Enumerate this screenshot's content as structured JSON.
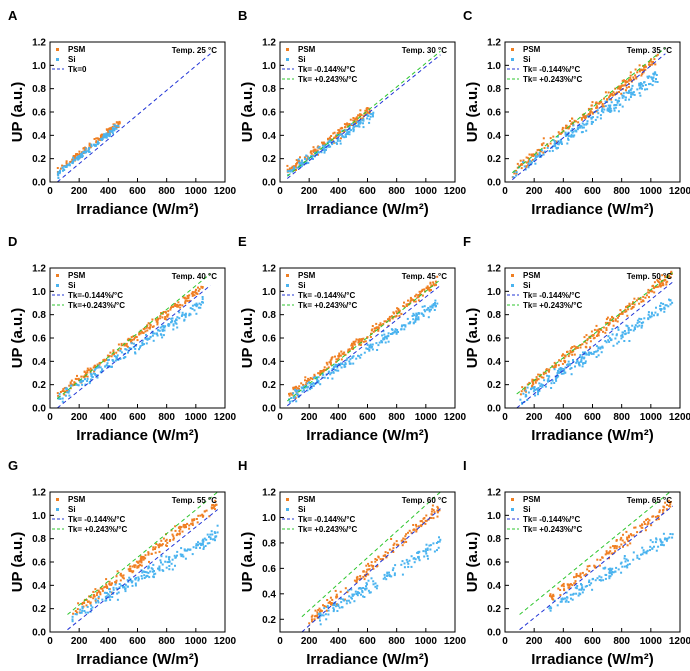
{
  "figure_title": "",
  "colors": {
    "psm": "#f07f22",
    "si": "#4ab3ef",
    "tk_neg": "#2134d6",
    "tk_pos": "#2dc62d",
    "tk_zero": "#2134d6"
  },
  "chart_data": [
    {
      "panel": "A",
      "type": "scatter",
      "temp": "Temp. 25 °C",
      "xlabel": "Irradiance (W/m²)",
      "ylabel": "UP (a.u.)",
      "xlim": [
        0,
        1200
      ],
      "ylim": [
        0,
        1.2
      ],
      "xticks": [
        "0",
        "200",
        "400",
        "600",
        "800",
        "1000",
        "1200"
      ],
      "yticks": [
        "0.0",
        "0.2",
        "0.4",
        "0.6",
        "0.8",
        "1.0",
        "1.2"
      ],
      "legend": [
        "PSM",
        "Si",
        "Tk=0"
      ],
      "series": [
        {
          "name": "PSM",
          "xrange": [
            50,
            480
          ],
          "slope": 0.001,
          "intercept": 0.035,
          "spread": 0.015,
          "n": 120
        },
        {
          "name": "Si",
          "xrange": [
            50,
            470
          ],
          "slope": 0.00098,
          "intercept": 0.02,
          "spread": 0.012,
          "n": 120
        }
      ],
      "lines": [
        {
          "name": "Tk=0",
          "color": "tk_zero",
          "x": [
            50,
            1100
          ],
          "y": [
            0.0,
            1.1
          ]
        }
      ]
    },
    {
      "panel": "B",
      "type": "scatter",
      "temp": "Temp. 30 °C",
      "xlabel": "Irradiance (W/m²)",
      "ylabel": "UP (a.u.)",
      "xlim": [
        0,
        1200
      ],
      "ylim": [
        0,
        1.2
      ],
      "xticks": [
        "0",
        "200",
        "400",
        "600",
        "800",
        "1000",
        "1200"
      ],
      "yticks": [
        "0.0",
        "0.2",
        "0.4",
        "0.6",
        "0.8",
        "1.0",
        "1.2"
      ],
      "legend": [
        "PSM",
        "Si",
        "Tk= -0.144%/°C",
        "Tk= +0.243%/°C"
      ],
      "series": [
        {
          "name": "PSM",
          "xrange": [
            50,
            630
          ],
          "slope": 0.00095,
          "intercept": 0.035,
          "spread": 0.02,
          "n": 160
        },
        {
          "name": "Si",
          "xrange": [
            50,
            640
          ],
          "slope": 0.00088,
          "intercept": 0.02,
          "spread": 0.02,
          "n": 160
        }
      ],
      "lines": [
        {
          "name": "Tk= -0.144%/°C",
          "color": "tk_neg",
          "x": [
            50,
            1100
          ],
          "y": [
            0.03,
            1.09
          ]
        },
        {
          "name": "Tk= +0.243%/°C",
          "color": "tk_pos",
          "x": [
            50,
            1100
          ],
          "y": [
            0.05,
            1.12
          ]
        }
      ]
    },
    {
      "panel": "C",
      "type": "scatter",
      "temp": "Temp. 35 °C",
      "xlabel": "Irradiance (W/m²)",
      "ylabel": "UP (a.u.)",
      "xlim": [
        0,
        1200
      ],
      "ylim": [
        0,
        1.2
      ],
      "xticks": [
        "0",
        "200",
        "400",
        "600",
        "800",
        "1000",
        "1200"
      ],
      "yticks": [
        "0.0",
        "0.2",
        "0.4",
        "0.6",
        "0.8",
        "1.0",
        "1.2"
      ],
      "legend": [
        "PSM",
        "Si",
        "Tk= -0.144%/°C",
        "Tk= +0.243%/°C"
      ],
      "series": [
        {
          "name": "PSM",
          "xrange": [
            50,
            1050
          ],
          "slope": 0.00098,
          "intercept": 0.035,
          "spread": 0.025,
          "n": 220
        },
        {
          "name": "Si",
          "xrange": [
            50,
            1050
          ],
          "slope": 0.00086,
          "intercept": 0.02,
          "spread": 0.03,
          "n": 220
        }
      ],
      "lines": [
        {
          "name": "Tk= -0.144%/°C",
          "color": "tk_neg",
          "x": [
            50,
            1100
          ],
          "y": [
            0.02,
            1.1
          ]
        },
        {
          "name": "Tk= +0.243%/°C",
          "color": "tk_pos",
          "x": [
            50,
            1100
          ],
          "y": [
            0.08,
            1.15
          ]
        }
      ]
    },
    {
      "panel": "D",
      "type": "scatter",
      "temp": "Temp. 40 °C",
      "xlabel": "Irradiance (W/m²)",
      "ylabel": "UP (a.u.)",
      "xlim": [
        0,
        1200
      ],
      "ylim": [
        0,
        1.2
      ],
      "xticks": [
        "0",
        "200",
        "400",
        "600",
        "800",
        "1000",
        "1200"
      ],
      "yticks": [
        "0.0",
        "0.2",
        "0.4",
        "0.6",
        "0.8",
        "1.0",
        "1.2"
      ],
      "legend": [
        "PSM",
        "Si",
        "Tk=-0.144%/°C",
        "Tk=+0.243%/°C"
      ],
      "series": [
        {
          "name": "PSM",
          "xrange": [
            50,
            1050
          ],
          "slope": 0.00093,
          "intercept": 0.06,
          "spread": 0.02,
          "n": 200
        },
        {
          "name": "Si",
          "xrange": [
            50,
            1050
          ],
          "slope": 0.00082,
          "intercept": 0.04,
          "spread": 0.025,
          "n": 200
        }
      ],
      "lines": [
        {
          "name": "Tk=-0.144%/°C",
          "color": "tk_neg",
          "x": [
            50,
            1100
          ],
          "y": [
            0.0,
            1.05
          ]
        },
        {
          "name": "Tk=+0.243%/°C",
          "color": "tk_pos",
          "x": [
            50,
            1100
          ],
          "y": [
            0.08,
            1.15
          ]
        }
      ]
    },
    {
      "panel": "E",
      "type": "scatter",
      "temp": "Temp. 45 °C",
      "xlabel": "Irradiance (W/m²)",
      "ylabel": "UP (a.u.)",
      "xlim": [
        0,
        1200
      ],
      "ylim": [
        0,
        1.2
      ],
      "xticks": [
        "0",
        "200",
        "400",
        "600",
        "800",
        "1000",
        "1200"
      ],
      "yticks": [
        "0.0",
        "0.2",
        "0.4",
        "0.6",
        "0.8",
        "1.0",
        "1.2"
      ],
      "legend": [
        "PSM",
        "Si",
        "Tk= -0.144%/°C",
        "Tk= +0.243%/°C"
      ],
      "series": [
        {
          "name": "PSM",
          "xrange": [
            60,
            1080
          ],
          "slope": 0.00096,
          "intercept": 0.05,
          "spread": 0.02,
          "n": 220
        },
        {
          "name": "Si",
          "xrange": [
            60,
            1080
          ],
          "slope": 0.00079,
          "intercept": 0.03,
          "spread": 0.025,
          "n": 220
        }
      ],
      "lines": [
        {
          "name": "Tk= -0.144%/°C",
          "color": "tk_neg",
          "x": [
            50,
            1100
          ],
          "y": [
            0.02,
            1.05
          ]
        },
        {
          "name": "Tk= +0.243%/°C",
          "color": "tk_pos",
          "x": [
            50,
            1100
          ],
          "y": [
            0.06,
            1.1
          ]
        }
      ]
    },
    {
      "panel": "F",
      "type": "scatter",
      "temp": "Temp. 50 °C",
      "xlabel": "Irradiance (W/m²)",
      "ylabel": "UP (a.u.)",
      "xlim": [
        0,
        1200
      ],
      "ylim": [
        0,
        1.2
      ],
      "xticks": [
        "0",
        "200",
        "400",
        "600",
        "800",
        "1000",
        "1200"
      ],
      "yticks": [
        "0.0",
        "0.2",
        "0.4",
        "0.6",
        "0.8",
        "1.0",
        "1.2"
      ],
      "legend": [
        "PSM",
        "Si",
        "Tk= -0.144%/°C",
        "Tk= +0.243%/°C"
      ],
      "series": [
        {
          "name": "PSM",
          "xrange": [
            100,
            1150
          ],
          "slope": 0.00097,
          "intercept": 0.03,
          "spread": 0.025,
          "n": 230
        },
        {
          "name": "Si",
          "xrange": [
            100,
            1150
          ],
          "slope": 0.00079,
          "intercept": 0.0,
          "spread": 0.03,
          "n": 230
        }
      ],
      "lines": [
        {
          "name": "Tk= -0.144%/°C",
          "color": "tk_neg",
          "x": [
            80,
            1150
          ],
          "y": [
            0.0,
            1.08
          ]
        },
        {
          "name": "Tk= +0.243%/°C",
          "color": "tk_pos",
          "x": [
            80,
            1150
          ],
          "y": [
            0.12,
            1.16
          ]
        }
      ]
    },
    {
      "panel": "G",
      "type": "scatter",
      "temp": "Temp. 55 °C",
      "xlabel": "Irradiance (W/m²)",
      "ylabel": "UP (a.u.)",
      "xlim": [
        0,
        1200
      ],
      "ylim": [
        0,
        1.2
      ],
      "xticks": [
        "0",
        "200",
        "400",
        "600",
        "800",
        "1000",
        "1200"
      ],
      "yticks": [
        "0.0",
        "0.2",
        "0.4",
        "0.6",
        "0.8",
        "1.0",
        "1.2"
      ],
      "legend": [
        "PSM",
        "Si",
        "Tk= -0.144%/°C",
        "Tk= +0.243%/°C"
      ],
      "series": [
        {
          "name": "PSM",
          "xrange": [
            150,
            1150
          ],
          "slope": 0.00095,
          "intercept": 0.02,
          "spread": 0.025,
          "n": 200
        },
        {
          "name": "Si",
          "xrange": [
            150,
            1150
          ],
          "slope": 0.00072,
          "intercept": 0.02,
          "spread": 0.03,
          "n": 200
        }
      ],
      "lines": [
        {
          "name": "Tk= -0.144%/°C",
          "color": "tk_neg",
          "x": [
            120,
            1150
          ],
          "y": [
            0.02,
            1.05
          ]
        },
        {
          "name": "Tk= +0.243%/°C",
          "color": "tk_pos",
          "x": [
            120,
            1150
          ],
          "y": [
            0.15,
            1.2
          ]
        }
      ]
    },
    {
      "panel": "H",
      "type": "scatter",
      "temp": "Temp. 60 °C",
      "xlabel": "Irradiance (W/m²)",
      "ylabel": "UP (a.u.)",
      "xlim": [
        0,
        1200
      ],
      "ylim": [
        0.1,
        1.2
      ],
      "xticks": [
        "0",
        "200",
        "400",
        "600",
        "800",
        "1000",
        "1200"
      ],
      "yticks": [
        "0.2",
        "0.4",
        "0.6",
        "0.8",
        "1.0",
        "1.2"
      ],
      "legend": [
        "PSM",
        "Si",
        "Tk= -0.144%/°C",
        "Tk= +0.243%/°C"
      ],
      "series": [
        {
          "name": "PSM",
          "xrange": [
            200,
            1100
          ],
          "slope": 0.001,
          "intercept": -0.02,
          "spread": 0.025,
          "n": 160
        },
        {
          "name": "Si",
          "xrange": [
            250,
            1100
          ],
          "slope": 0.0007,
          "intercept": 0.03,
          "spread": 0.03,
          "n": 150
        }
      ],
      "lines": [
        {
          "name": "Tk= -0.144%/°C",
          "color": "tk_neg",
          "x": [
            150,
            1100
          ],
          "y": [
            0.1,
            1.07
          ]
        },
        {
          "name": "Tk= +0.243%/°C",
          "color": "tk_pos",
          "x": [
            150,
            1100
          ],
          "y": [
            0.22,
            1.2
          ]
        }
      ]
    },
    {
      "panel": "I",
      "type": "scatter",
      "temp": "Temp. 65 °C",
      "xlabel": "Irradiance (W/m²)",
      "ylabel": "UP (a.u.)",
      "xlim": [
        0,
        1200
      ],
      "ylim": [
        0,
        1.2
      ],
      "xticks": [
        "0",
        "200",
        "400",
        "600",
        "800",
        "1000",
        "1200"
      ],
      "yticks": [
        "0.0",
        "0.2",
        "0.4",
        "0.6",
        "0.8",
        "1.0",
        "1.2"
      ],
      "legend": [
        "PSM",
        "Si",
        "Tk= -0.144%/°C",
        "Tk= +0.243%/°C"
      ],
      "series": [
        {
          "name": "PSM",
          "xrange": [
            300,
            1150
          ],
          "slope": 0.00098,
          "intercept": -0.02,
          "spread": 0.025,
          "n": 140
        },
        {
          "name": "Si",
          "xrange": [
            300,
            1150
          ],
          "slope": 0.00075,
          "intercept": -0.03,
          "spread": 0.03,
          "n": 140
        }
      ],
      "lines": [
        {
          "name": "Tk= -0.144%/°C",
          "color": "tk_neg",
          "x": [
            100,
            1150
          ],
          "y": [
            0.02,
            1.08
          ]
        },
        {
          "name": "Tk= +0.243%/°C",
          "color": "tk_pos",
          "x": [
            100,
            1150
          ],
          "y": [
            0.15,
            1.22
          ]
        }
      ]
    }
  ]
}
